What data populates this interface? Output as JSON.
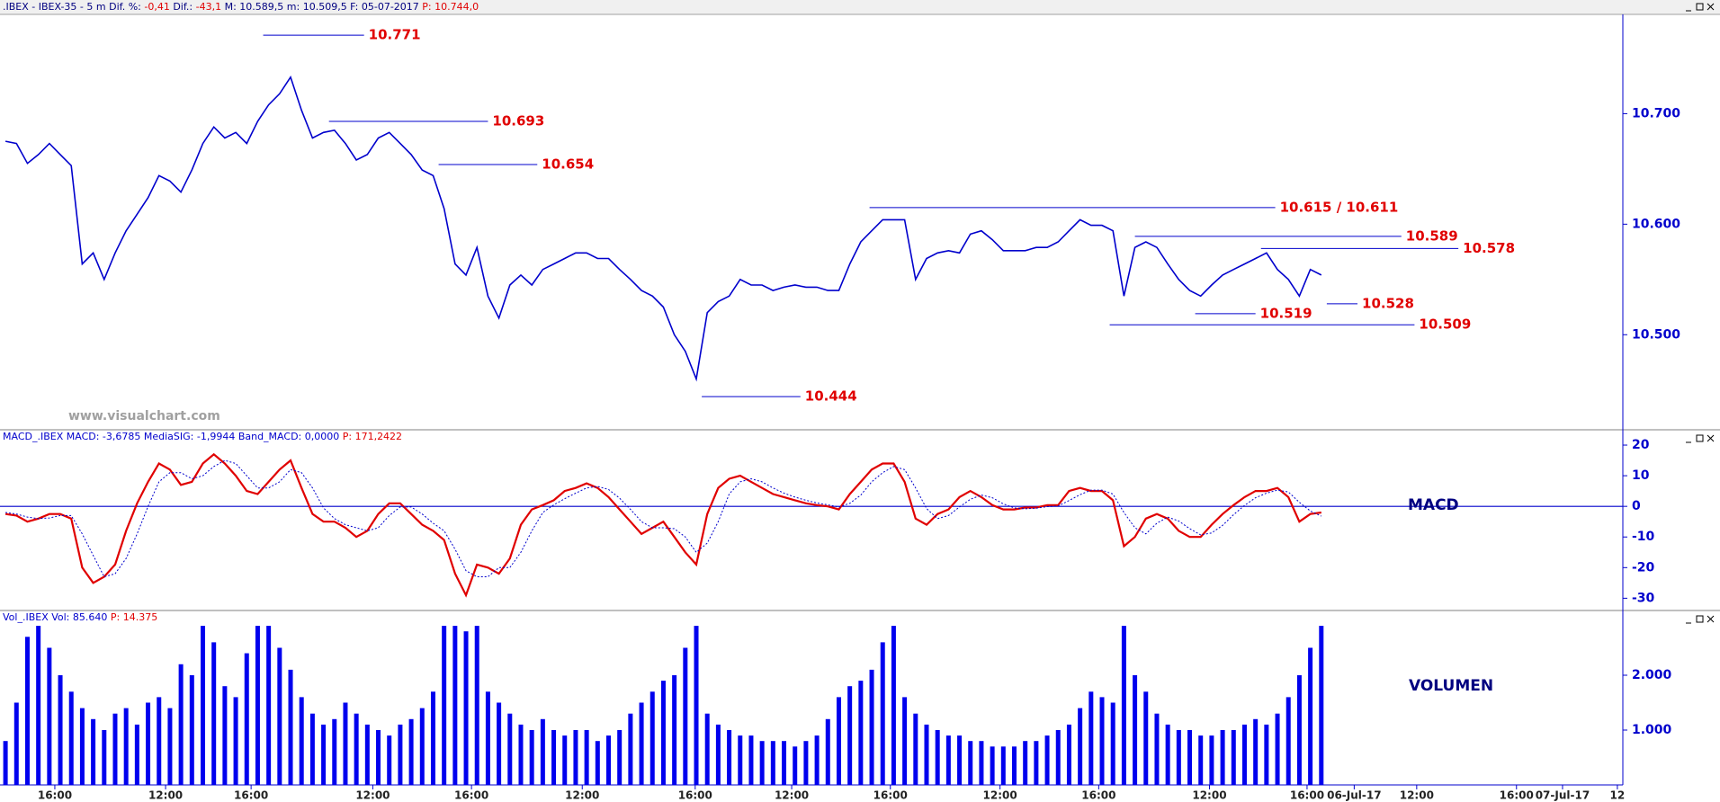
{
  "chart_data": [
    {
      "type": "line",
      "title_segments": [
        {
          "text": ".IBEX - IBEX-35 -  5 m  Dif. %:",
          "color": "#000080"
        },
        {
          "text": "-0,41",
          "color": "#e00000"
        },
        {
          "text": "Dif.:",
          "color": "#000080"
        },
        {
          "text": "-43,1",
          "color": "#e00000"
        },
        {
          "text": "M: 10.589,5  m: 10.509,5  F: 05-07-2017",
          "color": "#000080"
        },
        {
          "text": "P: 10.744,0",
          "color": "#e00000"
        }
      ],
      "watermark": "www.visualchart.com",
      "xlim": [
        -0.5,
        147.5
      ],
      "ylim": [
        10414,
        10789
      ],
      "yticks": [
        {
          "value": 10500,
          "label": "10.500"
        },
        {
          "value": 10600,
          "label": "10.600"
        },
        {
          "value": 10700,
          "label": "10.700"
        }
      ],
      "series": [
        {
          "name": "IBEX-35",
          "color": "#0000cc",
          "values": [
            10675,
            10673,
            10655,
            10663,
            10673,
            10663,
            10653,
            10564,
            10574,
            10550,
            10574,
            10594,
            10609,
            10624,
            10644,
            10639,
            10629,
            10649,
            10673,
            10688,
            10678,
            10683,
            10673,
            10693,
            10708,
            10718,
            10733,
            10703,
            10678,
            10683,
            10685,
            10673,
            10658,
            10663,
            10678,
            10683,
            10673,
            10663,
            10649,
            10644,
            10614,
            10564,
            10554,
            10579,
            10535,
            10515,
            10545,
            10554,
            10545,
            10559,
            10564,
            10569,
            10574,
            10574,
            10569,
            10569,
            10559,
            10550,
            10540,
            10535,
            10525,
            10500,
            10485,
            10460,
            10520,
            10530,
            10535,
            10550,
            10545,
            10545,
            10540,
            10543,
            10545,
            10543,
            10543,
            10540,
            10540,
            10564,
            10584,
            10594,
            10604,
            10604,
            10604,
            10550,
            10569,
            10574,
            10576,
            10574,
            10591,
            10594,
            10586,
            10576,
            10576,
            10576,
            10579,
            10579,
            10584,
            10594,
            10604,
            10599,
            10599,
            10594,
            10535,
            10579,
            10584,
            10579,
            10564,
            10550,
            10540,
            10535,
            10545,
            10554,
            10559,
            10564,
            10569,
            10574,
            10559,
            10550,
            10535,
            10559,
            10554
          ]
        }
      ],
      "annotations": [
        {
          "label": "10.771",
          "value": 10771,
          "from": 23.5,
          "to": 32.7
        },
        {
          "label": "10.693",
          "value": 10693,
          "from": 29.5,
          "to": 44
        },
        {
          "label": "10.654",
          "value": 10654,
          "from": 39.5,
          "to": 48.5
        },
        {
          "label": "10.444",
          "value": 10444,
          "from": 63.5,
          "to": 72.5
        },
        {
          "label": "10.615 / 10.611",
          "value": 10615,
          "from": 78.8,
          "to": 115.8
        },
        {
          "label": "10.589",
          "value": 10589,
          "from": 103,
          "to": 127.3
        },
        {
          "label": "10.578",
          "value": 10578,
          "from": 114.5,
          "to": 132.5
        },
        {
          "label": "10.528",
          "value": 10528,
          "from": 120.5,
          "to": 123.3
        },
        {
          "label": "10.519",
          "value": 10519,
          "from": 108.5,
          "to": 114
        },
        {
          "label": "10.509",
          "value": 10509,
          "from": 100.7,
          "to": 128.5
        }
      ],
      "annotation_color": "#e00000"
    },
    {
      "type": "line",
      "title_segments": [
        {
          "text": "MACD_.IBEX  MACD: -3,6785  MediaSIG: -1,9944  Band_MACD: 0,0000",
          "color": "#0000cc"
        },
        {
          "text": "P: 171,2422",
          "color": "#e00000"
        }
      ],
      "label": "MACD",
      "band": 0,
      "xlim": [
        -0.5,
        147.5
      ],
      "ylim": [
        -34,
        25
      ],
      "yticks": [
        -30,
        -20,
        -10,
        0,
        10,
        20
      ],
      "series": [
        {
          "name": "MACD",
          "color": "#e00000",
          "style": "solid",
          "values": [
            -2.5,
            -3,
            -5,
            -4,
            -2.5,
            -2.5,
            -4,
            -20,
            -25,
            -23,
            -19,
            -8,
            1,
            8,
            14,
            12,
            7,
            8,
            14,
            17,
            14,
            10,
            5,
            4,
            8,
            12,
            15,
            6,
            -2.5,
            -5,
            -5,
            -7,
            -10,
            -8,
            -2.5,
            1,
            1,
            -2.5,
            -6,
            -8,
            -11,
            -22,
            -29,
            -19,
            -20,
            -22,
            -17,
            -6,
            -1,
            0.4,
            2,
            5,
            6,
            7.5,
            6,
            3,
            -1,
            -5,
            -9,
            -7,
            -5,
            -10,
            -15,
            -19,
            -2.5,
            6,
            9,
            10,
            8,
            6,
            4,
            3,
            2,
            1,
            0.4,
            0,
            -1,
            4,
            8,
            12,
            14,
            14,
            8,
            -4,
            -6,
            -2.5,
            -1,
            3,
            5,
            3,
            0.4,
            -1,
            -1,
            -0.4,
            -0.4,
            0.4,
            0.4,
            5,
            6,
            5,
            5,
            2,
            -13,
            -10,
            -4,
            -2.5,
            -4,
            -8,
            -10,
            -10,
            -6,
            -2.5,
            0.4,
            3,
            5,
            5,
            6,
            3,
            -5,
            -2.5,
            -2
          ]
        },
        {
          "name": "MediaSIG",
          "color": "#0000cc",
          "style": "dotted",
          "values": [
            -2,
            -2.5,
            -3.5,
            -4,
            -3.8,
            -3,
            -3,
            -9,
            -16,
            -23,
            -22,
            -17,
            -9,
            0,
            8,
            11,
            11,
            9,
            10,
            13,
            15,
            14,
            10,
            6,
            6,
            8,
            12,
            11,
            6,
            -0.5,
            -4,
            -6,
            -7,
            -8,
            -7,
            -3,
            -0.2,
            -0.2,
            -2.5,
            -5.5,
            -8,
            -14,
            -21,
            -23,
            -23,
            -20,
            -20,
            -15,
            -8,
            -2,
            0.5,
            2.5,
            4.3,
            6,
            6.5,
            5.5,
            2.7,
            -1,
            -5,
            -7,
            -7,
            -7.3,
            -10,
            -15,
            -12,
            -5,
            4,
            8,
            9,
            8,
            6,
            4.3,
            3,
            2,
            1.1,
            0.5,
            -0.2,
            1,
            3.7,
            8,
            11,
            13,
            12,
            6,
            -0.7,
            -4,
            -3,
            -0.2,
            2.3,
            3.7,
            2.8,
            0.8,
            -0.5,
            -0.8,
            -0.6,
            -0.1,
            0.1,
            1.9,
            3.8,
            5.3,
            5.3,
            4,
            -2,
            -7,
            -9,
            -5.5,
            -3.5,
            -4.8,
            -7.3,
            -9.3,
            -8.7,
            -6.2,
            -2.7,
            0.3,
            2.8,
            4.3,
            5.3,
            4.7,
            1.3,
            -1.5,
            -3.2
          ]
        }
      ]
    },
    {
      "type": "bar",
      "title_segments": [
        {
          "text": "Vol_.IBEX  Vol: 85.640",
          "color": "#0000cc"
        },
        {
          "text": "P: 14.375",
          "color": "#e00000"
        }
      ],
      "label": "VOLUMEN",
      "color": "#0000ee",
      "xlim": [
        -0.5,
        147.5
      ],
      "ylim": [
        0,
        3180
      ],
      "yticks": [
        {
          "value": 1000,
          "label": "1.000"
        },
        {
          "value": 2000,
          "label": "2.000"
        }
      ],
      "xticks": [
        {
          "value": 4.5,
          "label": "16:00"
        },
        {
          "value": 14.6,
          "label": "12:00"
        },
        {
          "value": 22.4,
          "label": "16:00"
        },
        {
          "value": 33.5,
          "label": "12:00"
        },
        {
          "value": 42.5,
          "label": "16:00"
        },
        {
          "value": 52.6,
          "label": "12:00"
        },
        {
          "value": 62.9,
          "label": "16:00"
        },
        {
          "value": 71.7,
          "label": "12:00"
        },
        {
          "value": 80.7,
          "label": "16:00"
        },
        {
          "value": 90.7,
          "label": "12:00"
        },
        {
          "value": 99.7,
          "label": "16:00"
        },
        {
          "value": 109.8,
          "label": "12:00"
        },
        {
          "value": 118.7,
          "label": "16:00"
        },
        {
          "value": 123,
          "label": "06-Jul-17"
        },
        {
          "value": 128.7,
          "label": "12:00"
        },
        {
          "value": 137.8,
          "label": "16:00"
        },
        {
          "value": 142,
          "label": "07-Jul-17"
        },
        {
          "value": 147,
          "label": "12"
        }
      ],
      "values": [
        800,
        1500,
        2700,
        2900,
        2500,
        2000,
        1700,
        1400,
        1200,
        1000,
        1300,
        1400,
        1100,
        1500,
        1600,
        1400,
        2200,
        2000,
        2900,
        2600,
        1800,
        1600,
        2400,
        2900,
        2900,
        2500,
        2100,
        1600,
        1300,
        1100,
        1200,
        1500,
        1300,
        1100,
        1000,
        900,
        1100,
        1200,
        1400,
        1700,
        2900,
        2900,
        2800,
        2900,
        1700,
        1500,
        1300,
        1100,
        1000,
        1200,
        1000,
        900,
        1000,
        1000,
        800,
        900,
        1000,
        1300,
        1500,
        1700,
        1900,
        2000,
        2500,
        2900,
        1300,
        1100,
        1000,
        900,
        900,
        800,
        800,
        800,
        700,
        800,
        900,
        1200,
        1600,
        1800,
        1900,
        2100,
        2600,
        2900,
        1600,
        1300,
        1100,
        1000,
        900,
        900,
        800,
        800,
        700,
        700,
        700,
        800,
        800,
        900,
        1000,
        1100,
        1400,
        1700,
        1600,
        1500,
        2900,
        2000,
        1700,
        1300,
        1100,
        1000,
        1000,
        900,
        900,
        1000,
        1000,
        1100,
        1200,
        1100,
        1300,
        1600,
        2000,
        2500,
        2900
      ]
    }
  ]
}
